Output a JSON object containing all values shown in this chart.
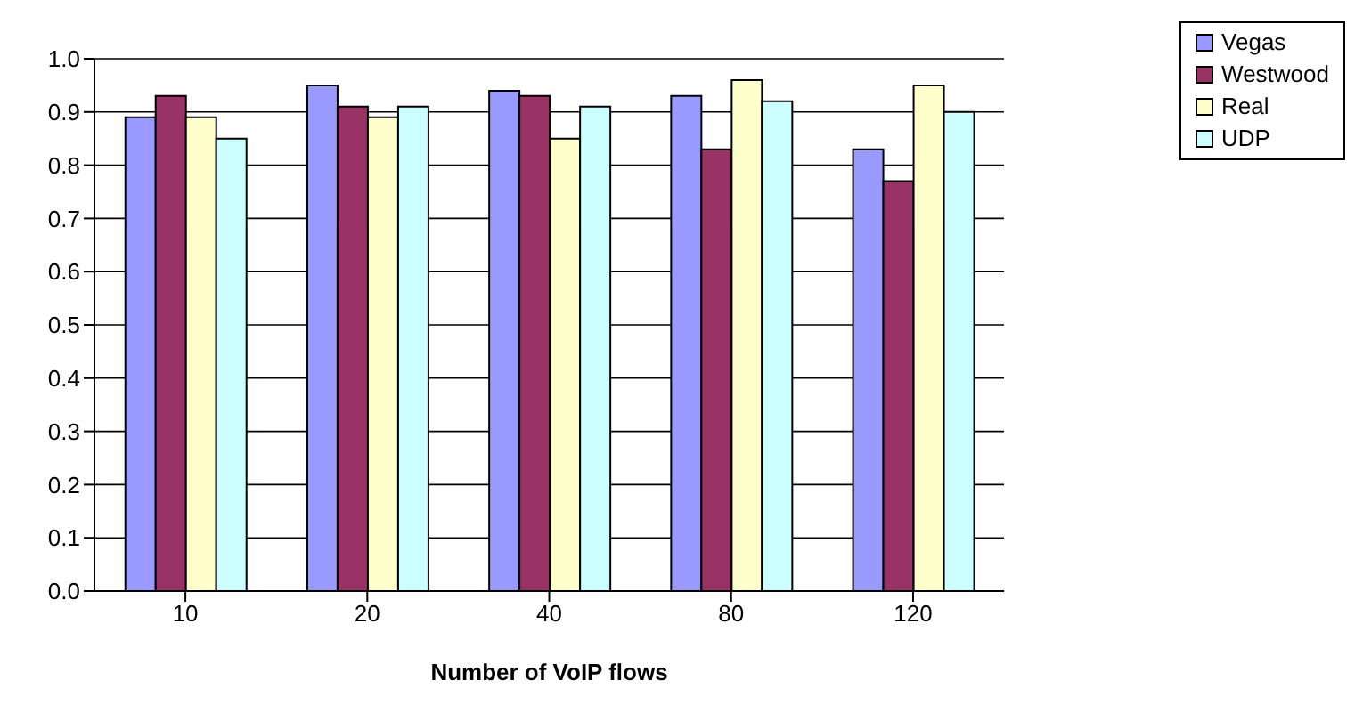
{
  "chart_data": {
    "type": "bar",
    "xlabel": "Number of VoIP flows",
    "categories": [
      "10",
      "20",
      "40",
      "80",
      "120"
    ],
    "series": [
      {
        "name": "Vegas",
        "color": "#9999ff",
        "values": [
          0.89,
          0.95,
          0.94,
          0.93,
          0.83
        ]
      },
      {
        "name": "Westwood",
        "color": "#993366",
        "values": [
          0.93,
          0.91,
          0.93,
          0.83,
          0.77
        ]
      },
      {
        "name": "Real",
        "color": "#ffffcc",
        "values": [
          0.89,
          0.89,
          0.85,
          0.96,
          0.95
        ]
      },
      {
        "name": "UDP",
        "color": "#ccffff",
        "values": [
          0.85,
          0.91,
          0.91,
          0.92,
          0.9
        ]
      }
    ],
    "ylim": [
      0,
      1
    ],
    "yticks": [
      {
        "value": 0,
        "label": "0.0"
      },
      {
        "value": 0.1,
        "label": "0.1"
      },
      {
        "value": 0.2,
        "label": "0.2"
      },
      {
        "value": 0.3,
        "label": "0.3"
      },
      {
        "value": 0.4,
        "label": "0.4"
      },
      {
        "value": 0.5,
        "label": "0.5"
      },
      {
        "value": 0.6,
        "label": "0.6"
      },
      {
        "value": 0.7,
        "label": "0.7"
      },
      {
        "value": 0.8,
        "label": "0.8"
      },
      {
        "value": 0.9,
        "label": "0.9"
      },
      {
        "value": 1,
        "label": "1.0"
      }
    ],
    "grid": "y",
    "legend": "top right"
  }
}
